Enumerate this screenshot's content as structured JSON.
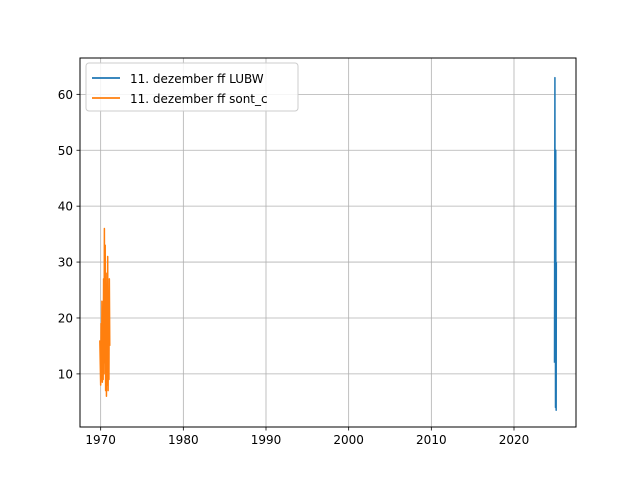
{
  "chart_data": {
    "type": "line",
    "title": "",
    "xlabel": "",
    "ylabel": "",
    "xlim": [
      1967.5,
      2027.5
    ],
    "ylim": [
      0.5,
      66.5
    ],
    "xticks": [
      1970,
      1980,
      1990,
      2000,
      2010,
      2020
    ],
    "yticks": [
      10,
      20,
      30,
      40,
      50,
      60
    ],
    "xtick_labels": [
      "1970",
      "1980",
      "1990",
      "2000",
      "2010",
      "2020"
    ],
    "ytick_labels": [
      "10",
      "20",
      "30",
      "40",
      "50",
      "60"
    ],
    "grid": true,
    "legend_position": "top-left",
    "series": [
      {
        "name": "11. dezember ff LUBW",
        "color": "#1f77b4",
        "x": [
          2024.9,
          2024.92,
          2024.95,
          2024.97,
          2025.0,
          2025.02,
          2025.05,
          2025.07,
          2025.1,
          2025.12
        ],
        "y": [
          12,
          35,
          63,
          20,
          45,
          4,
          50,
          18,
          3.5,
          30
        ]
      },
      {
        "name": "11. dezember ff sont_c",
        "color": "#ff7f0e",
        "x": [
          1969.9,
          1970.0,
          1970.05,
          1970.1,
          1970.15,
          1970.2,
          1970.25,
          1970.3,
          1970.35,
          1970.4,
          1970.45,
          1970.5,
          1970.55,
          1970.6,
          1970.65,
          1970.7,
          1970.75,
          1970.8,
          1970.85,
          1970.9,
          1970.95,
          1971.0,
          1971.05,
          1971.1
        ],
        "y": [
          16,
          8,
          19,
          9,
          23,
          8.5,
          14,
          9,
          27,
          10,
          36,
          12,
          33,
          7,
          25,
          6,
          28,
          8,
          31,
          7,
          20,
          9,
          27,
          15
        ]
      }
    ]
  }
}
